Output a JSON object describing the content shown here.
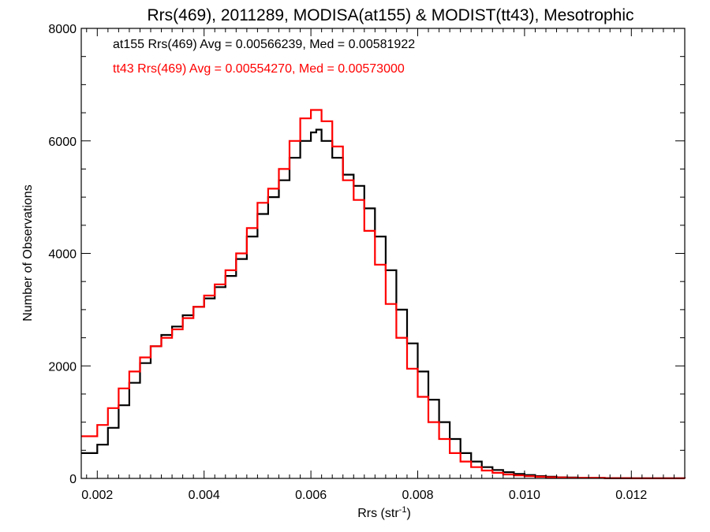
{
  "chart_data": {
    "type": "line",
    "title": "Rrs(469), 2011289, MODISA(at155) & MODIST(tt43), Mesotrophic",
    "xlabel": "Rrs (str",
    "xlabel_sup": "-1",
    "xlabel_close": ")",
    "ylabel": "Number of Observations",
    "xlim": [
      0.0017,
      0.013
    ],
    "ylim": [
      0,
      8000
    ],
    "xticks": [
      0.002,
      0.004,
      0.006,
      0.008,
      0.01,
      0.012
    ],
    "xtick_labels": [
      "0.002",
      "0.004",
      "0.006",
      "0.008",
      "0.010",
      "0.012"
    ],
    "yticks": [
      0,
      2000,
      4000,
      6000,
      8000
    ],
    "ytick_labels": [
      "0",
      "2000",
      "4000",
      "6000",
      "8000"
    ],
    "grid": false,
    "legend_position": "top-left",
    "series": [
      {
        "name": "at155",
        "legend": "at155 Rrs(469) Avg = 0.00566239, Med = 0.00581922",
        "color": "#000000",
        "x": [
          0.0017,
          0.002,
          0.0022,
          0.0024,
          0.0026,
          0.0028,
          0.003,
          0.0032,
          0.0034,
          0.0036,
          0.0038,
          0.004,
          0.0042,
          0.0044,
          0.0046,
          0.0048,
          0.005,
          0.0052,
          0.0054,
          0.0056,
          0.0058,
          0.006,
          0.0061,
          0.0062,
          0.0064,
          0.0066,
          0.0068,
          0.007,
          0.0072,
          0.0074,
          0.0076,
          0.0078,
          0.008,
          0.0082,
          0.0084,
          0.0086,
          0.0088,
          0.009,
          0.0092,
          0.0094,
          0.0096,
          0.0098,
          0.01,
          0.0102,
          0.0104,
          0.0106,
          0.0108,
          0.011,
          0.0115,
          0.012,
          0.0125,
          0.013
        ],
        "y": [
          450,
          600,
          900,
          1300,
          1700,
          2050,
          2350,
          2550,
          2700,
          2900,
          3050,
          3200,
          3400,
          3600,
          3900,
          4300,
          4700,
          5000,
          5300,
          5700,
          6000,
          6150,
          6200,
          6000,
          5700,
          5400,
          5200,
          4800,
          4300,
          3700,
          3000,
          2400,
          1900,
          1400,
          1000,
          700,
          450,
          300,
          200,
          150,
          110,
          80,
          60,
          40,
          30,
          20,
          15,
          10,
          5,
          3,
          2,
          0
        ]
      },
      {
        "name": "tt43",
        "legend": "tt43 Rrs(469) Avg = 0.00554270, Med = 0.00573000",
        "color": "#ff0000",
        "x": [
          0.0017,
          0.002,
          0.0022,
          0.0024,
          0.0026,
          0.0028,
          0.003,
          0.0032,
          0.0034,
          0.0036,
          0.0038,
          0.004,
          0.0042,
          0.0044,
          0.0046,
          0.0048,
          0.005,
          0.0052,
          0.0054,
          0.0056,
          0.0058,
          0.006,
          0.0061,
          0.0062,
          0.0064,
          0.0066,
          0.0068,
          0.007,
          0.0072,
          0.0074,
          0.0076,
          0.0078,
          0.008,
          0.0082,
          0.0084,
          0.0086,
          0.0088,
          0.009,
          0.0092,
          0.0094,
          0.0096,
          0.0098,
          0.01,
          0.0102,
          0.0104,
          0.0106,
          0.0108,
          0.011,
          0.0115,
          0.012,
          0.0125,
          0.013
        ],
        "y": [
          750,
          950,
          1250,
          1600,
          1900,
          2150,
          2350,
          2500,
          2650,
          2850,
          3050,
          3250,
          3450,
          3700,
          4000,
          4450,
          4900,
          5150,
          5500,
          6000,
          6400,
          6550,
          6550,
          6350,
          5900,
          5300,
          4950,
          4400,
          3800,
          3100,
          2500,
          1950,
          1450,
          1000,
          700,
          450,
          300,
          200,
          140,
          100,
          70,
          55,
          40,
          30,
          20,
          15,
          10,
          8,
          4,
          2,
          1,
          0
        ]
      }
    ]
  }
}
